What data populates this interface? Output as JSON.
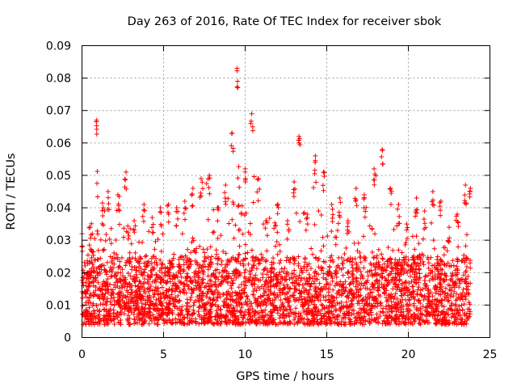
{
  "chart_data": {
    "type": "scatter",
    "title": "Day 263 of 2016, Rate Of TEC Index for receiver sbok",
    "xlabel": "GPS time / hours",
    "ylabel": "ROTI / TECUs",
    "xlim": [
      0,
      25
    ],
    "ylim": [
      0,
      0.09
    ],
    "xticks": [
      0,
      5,
      10,
      15,
      20,
      25
    ],
    "xtick_labels": [
      "0",
      "5",
      "10",
      "15",
      "20",
      "25"
    ],
    "yticks": [
      0,
      0.01,
      0.02,
      0.03,
      0.04,
      0.05,
      0.06,
      0.07,
      0.08,
      0.09
    ],
    "ytick_labels": [
      "0",
      "0.01",
      "0.02",
      "0.03",
      "0.04",
      "0.05",
      "0.06",
      "0.07",
      "0.08",
      "0.09"
    ],
    "grid": true,
    "marker": "+",
    "series": [
      {
        "name": "ROTI",
        "color": "#ff0000",
        "time_range_hours": [
          0,
          23.8
        ],
        "typical_range": [
          0.004,
          0.025
        ],
        "upper_envelope": [
          [
            0.0,
            0.032
          ],
          [
            0.5,
            0.034
          ],
          [
            0.9,
            0.067
          ],
          [
            1.3,
            0.04
          ],
          [
            1.6,
            0.045
          ],
          [
            2.2,
            0.044
          ],
          [
            2.7,
            0.051
          ],
          [
            3.2,
            0.036
          ],
          [
            3.8,
            0.041
          ],
          [
            4.3,
            0.037
          ],
          [
            4.8,
            0.04
          ],
          [
            5.3,
            0.041
          ],
          [
            5.8,
            0.04
          ],
          [
            6.3,
            0.042
          ],
          [
            6.8,
            0.046
          ],
          [
            7.3,
            0.049
          ],
          [
            7.8,
            0.05
          ],
          [
            8.3,
            0.04
          ],
          [
            8.8,
            0.047
          ],
          [
            9.2,
            0.063
          ],
          [
            9.5,
            0.083
          ],
          [
            10.0,
            0.052
          ],
          [
            10.4,
            0.069
          ],
          [
            10.8,
            0.049
          ],
          [
            11.3,
            0.036
          ],
          [
            12.0,
            0.041
          ],
          [
            12.6,
            0.036
          ],
          [
            13.0,
            0.048
          ],
          [
            13.3,
            0.062
          ],
          [
            13.8,
            0.038
          ],
          [
            14.3,
            0.056
          ],
          [
            14.8,
            0.051
          ],
          [
            15.3,
            0.041
          ],
          [
            15.8,
            0.043
          ],
          [
            16.3,
            0.036
          ],
          [
            16.8,
            0.046
          ],
          [
            17.3,
            0.044
          ],
          [
            17.9,
            0.052
          ],
          [
            18.4,
            0.058
          ],
          [
            18.9,
            0.046
          ],
          [
            19.4,
            0.041
          ],
          [
            19.9,
            0.035
          ],
          [
            20.5,
            0.043
          ],
          [
            21.0,
            0.039
          ],
          [
            21.5,
            0.045
          ],
          [
            22.0,
            0.042
          ],
          [
            22.5,
            0.034
          ],
          [
            23.0,
            0.038
          ],
          [
            23.5,
            0.047
          ],
          [
            23.8,
            0.046
          ]
        ]
      }
    ]
  }
}
